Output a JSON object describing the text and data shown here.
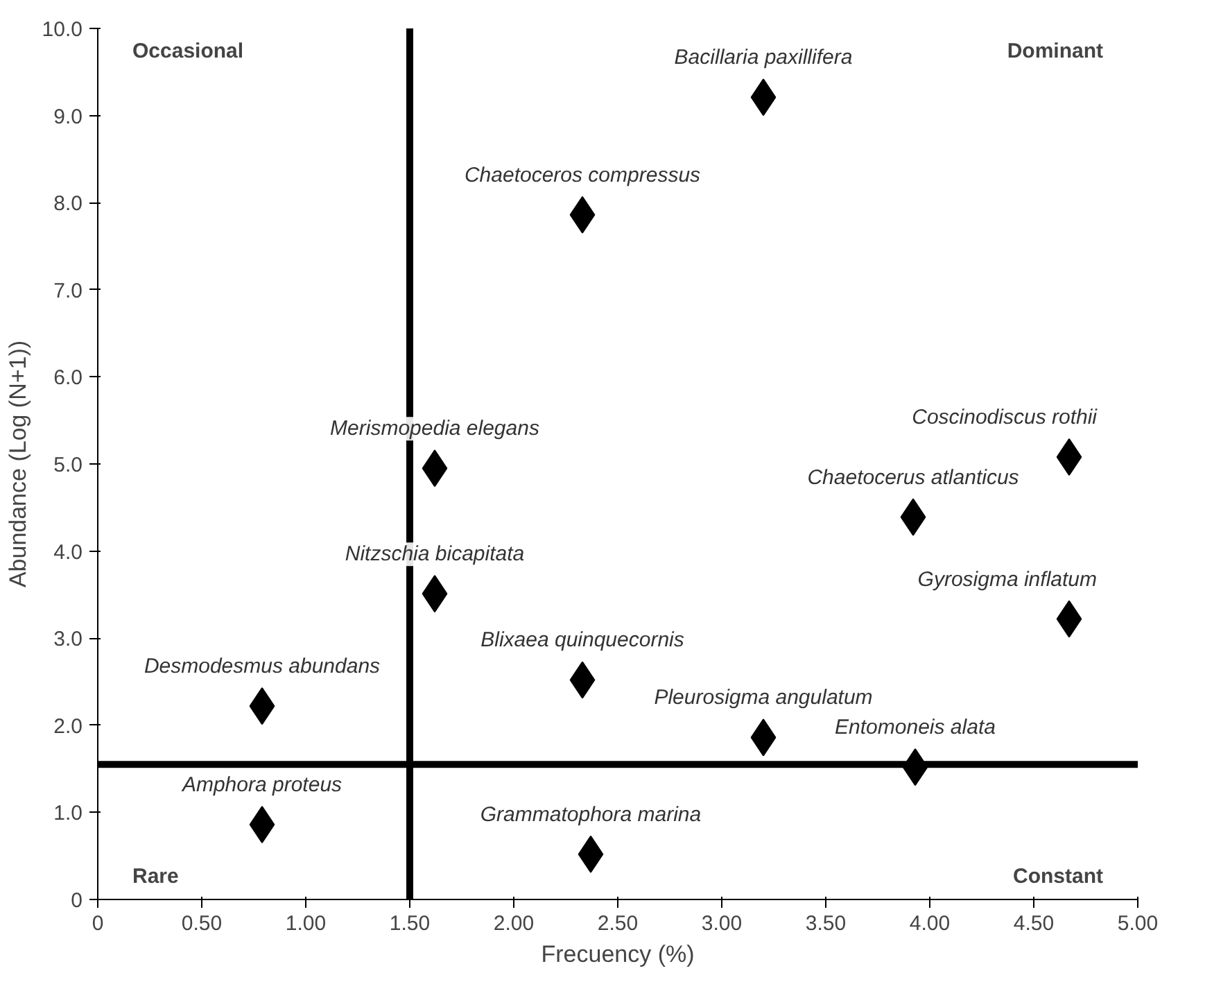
{
  "chart_data": {
    "type": "scatter",
    "xlabel": "Frecuency (%)",
    "ylabel": "Abundance (Log (N+1))",
    "x": [
      3.2,
      2.33,
      4.67,
      3.92,
      4.67,
      1.62,
      1.62,
      2.33,
      0.79,
      3.2,
      3.93,
      0.79,
      2.37
    ],
    "series": [
      {
        "color": "#000000",
        "values": [
          9.21,
          7.86,
          5.08,
          4.39,
          3.22,
          4.95,
          3.51,
          2.52,
          2.22,
          1.86,
          1.52,
          0.86,
          0.52
        ]
      }
    ],
    "marker": "diamond",
    "grid": false,
    "xlim": [
      0,
      5.0
    ],
    "ylim": [
      0,
      10.0
    ],
    "xticks": [
      0,
      {
        "value": 0.5,
        "label": "0.50"
      },
      {
        "value": 1,
        "label": "1.00"
      },
      {
        "value": 1.5,
        "label": "1.50"
      },
      {
        "value": 2,
        "label": "2.00"
      },
      {
        "value": 2.5,
        "label": "2.50"
      },
      {
        "value": 3,
        "label": "3.00"
      },
      {
        "value": 3.5,
        "label": "3.50"
      },
      {
        "value": 4,
        "label": "4.00"
      },
      {
        "value": 4.5,
        "label": "4.50"
      },
      {
        "value": 5,
        "label": "5.00"
      }
    ],
    "yticks": [
      0,
      {
        "value": 1,
        "label": "1.0"
      },
      {
        "value": 2,
        "label": "2.0"
      },
      {
        "value": 3,
        "label": "3.0"
      },
      {
        "value": 4,
        "label": "4.0"
      },
      {
        "value": 5,
        "label": "5.0"
      },
      {
        "value": 6,
        "label": "6.0"
      },
      {
        "value": 7,
        "label": "7.0"
      },
      {
        "value": 8,
        "label": "8.0"
      },
      {
        "value": 9,
        "label": "9.0"
      },
      {
        "value": 10,
        "label": "10.0"
      }
    ],
    "ref_lines": [
      {
        "axis": "x",
        "value": 1.5,
        "color": "#000000",
        "line_style": "solid"
      },
      {
        "axis": "y",
        "value": 1.55,
        "color": "#000000",
        "line_style": "solid"
      }
    ],
    "annotations": [
      "Occasional",
      "Dominant",
      "Rare",
      "Constant",
      {
        "text": "Bacillaria paxillifera",
        "x": 3.2,
        "y": 9.21
      },
      {
        "text": "Chaetoceros compressus",
        "x": 2.33,
        "y": 7.86
      },
      {
        "text": "Coscinodiscus rothii",
        "x": 4.67,
        "y": 5.08
      },
      {
        "text": "Chaetocerus atlanticus",
        "x": 3.92,
        "y": 4.39
      },
      {
        "text": "Gyrosigma inflatum",
        "x": 4.67,
        "y": 3.22
      },
      {
        "text": "Merismopedia elegans",
        "x": 1.62,
        "y": 4.95
      },
      {
        "text": "Nitzschia bicapitata",
        "x": 1.62,
        "y": 3.51
      },
      {
        "text": "Blixaea quinquecornis",
        "x": 2.33,
        "y": 2.52
      },
      {
        "text": "Desmodesmus abundans",
        "x": 0.79,
        "y": 2.22
      },
      {
        "text": "Pleurosigma angulatum",
        "x": 3.2,
        "y": 1.86
      },
      {
        "text": "Entomoneis alata",
        "x": 3.93,
        "y": 1.52
      },
      {
        "text": "Amphora proteus",
        "x": 0.79,
        "y": 0.86
      },
      {
        "text": "Grammatophora marina",
        "x": 2.37,
        "y": 0.52
      }
    ]
  }
}
